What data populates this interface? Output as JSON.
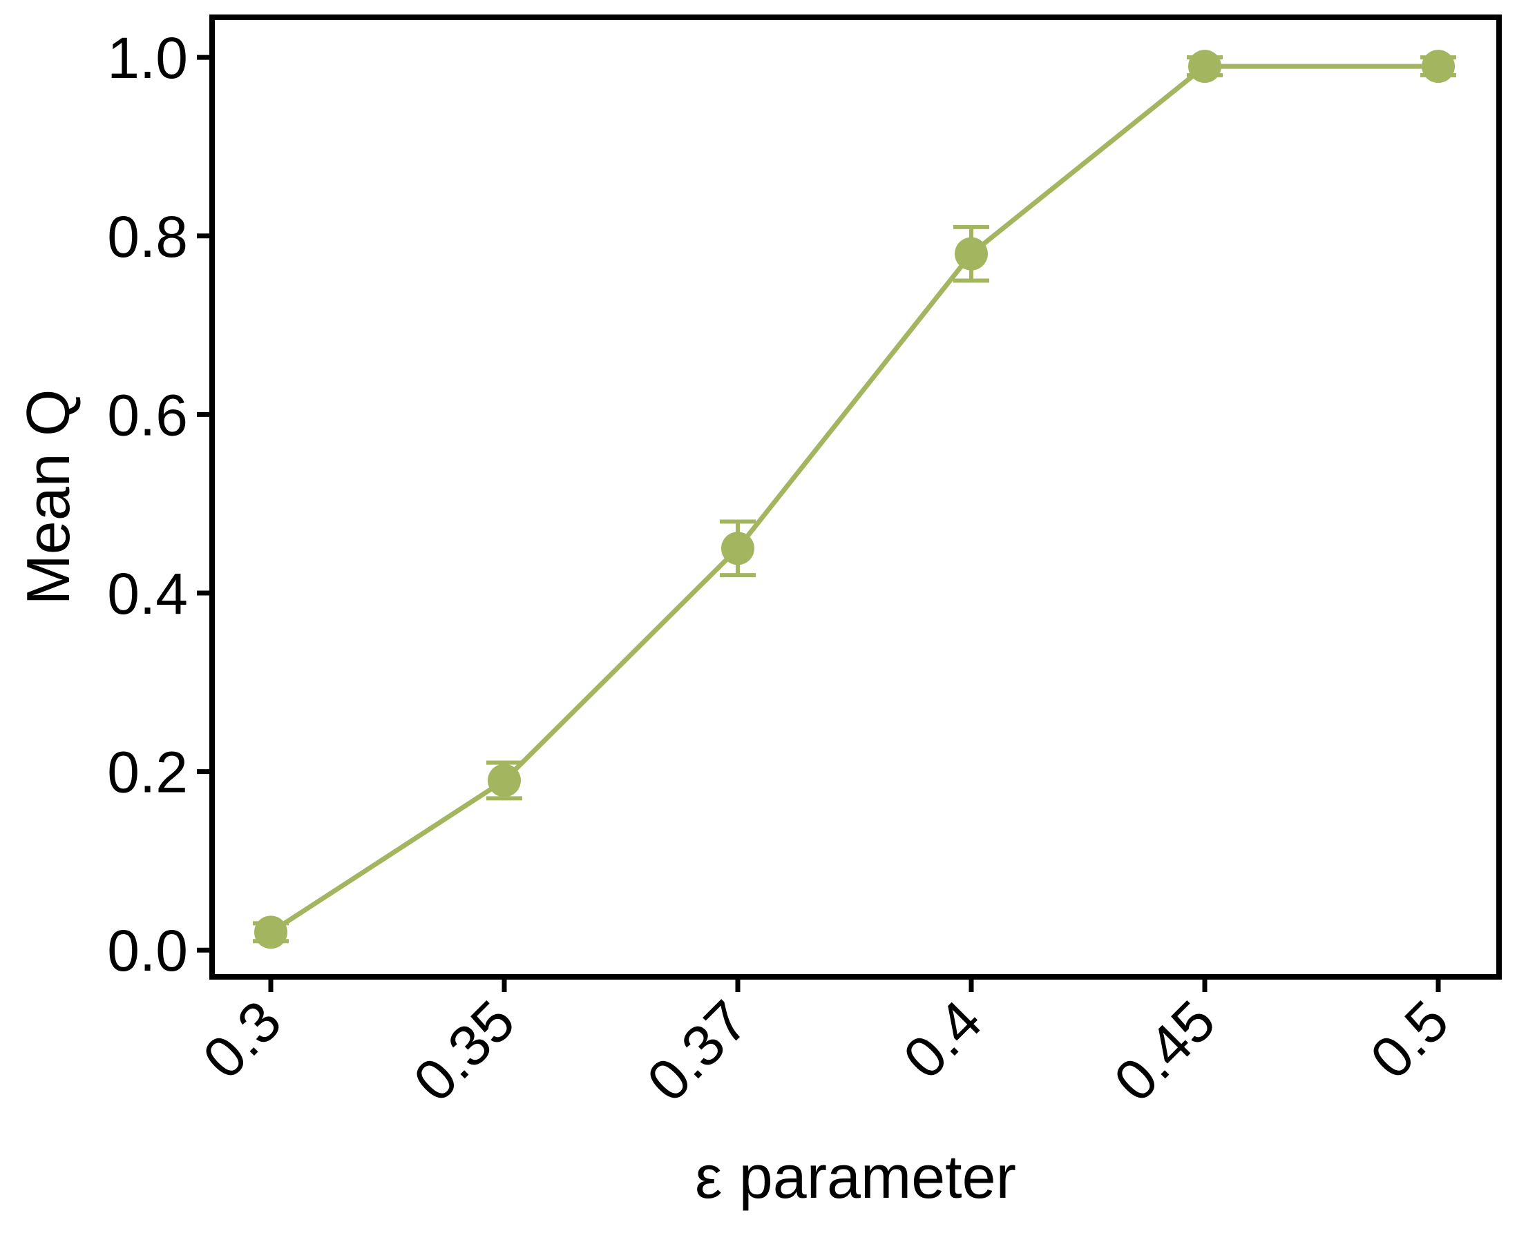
{
  "chart_data": {
    "type": "line",
    "title": "",
    "xlabel": "ε parameter",
    "ylabel": "Mean Q",
    "categories": [
      "0.3",
      "0.35",
      "0.37",
      "0.4",
      "0.45",
      "0.5"
    ],
    "series": [
      {
        "values": [
          0.02,
          0.19,
          0.45,
          0.78,
          0.99,
          0.99
        ],
        "errors": [
          0.01,
          0.02,
          0.03,
          0.03,
          0.01,
          0.01
        ],
        "color": "#a4b55f"
      }
    ],
    "yticks": [
      "0.0",
      "0.2",
      "0.4",
      "0.6",
      "0.8",
      "1.0"
    ],
    "ylim": [
      -0.03,
      1.045
    ],
    "grid": false,
    "legend": "none"
  }
}
